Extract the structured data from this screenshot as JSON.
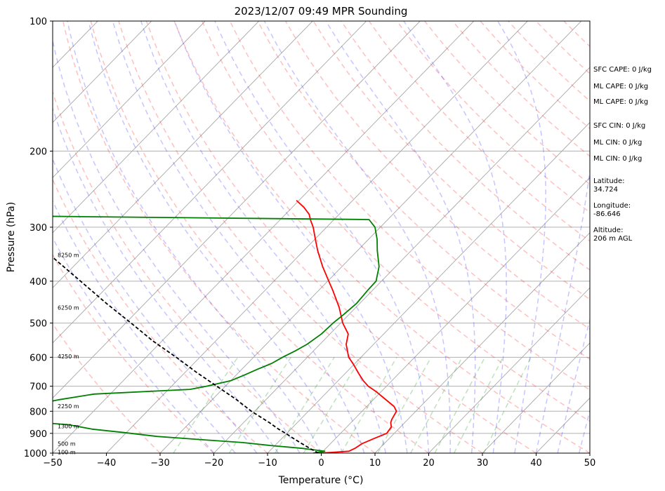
{
  "chart_data": {
    "type": "line",
    "title": "2023/12/07 09:49 MPR Sounding",
    "xlabel": "Temperature (°C)",
    "ylabel": "Pressure (hPa)",
    "xlim": [
      -50,
      50
    ],
    "ylim": [
      1000,
      100
    ],
    "yscale": "log",
    "skew": true,
    "x_ticks": [
      -50,
      -40,
      -30,
      -20,
      -10,
      0,
      10,
      20,
      30,
      40,
      50
    ],
    "y_ticks": [
      100,
      200,
      300,
      400,
      500,
      600,
      700,
      800,
      900,
      1000
    ],
    "grid": true,
    "altitude_labels": [
      {
        "label": "100 m",
        "pressure": 995
      },
      {
        "label": "500 m",
        "pressure": 950
      },
      {
        "label": "1300 m",
        "pressure": 866
      },
      {
        "label": "2250 m",
        "pressure": 778
      },
      {
        "label": "4250 m",
        "pressure": 597
      },
      {
        "label": "6250 m",
        "pressure": 460
      },
      {
        "label": "8250 m",
        "pressure": 348
      }
    ],
    "series": [
      {
        "color": "#ff0000",
        "points": [
          [
            1000,
            -0.5
          ],
          [
            997,
            1.5
          ],
          [
            990,
            4.8
          ],
          [
            975,
            5.4
          ],
          [
            950,
            5.9
          ],
          [
            925,
            7.2
          ],
          [
            900,
            8.6
          ],
          [
            870,
            8.3
          ],
          [
            850,
            7.4
          ],
          [
            835,
            7.0
          ],
          [
            800,
            6.4
          ],
          [
            780,
            5.1
          ],
          [
            750,
            2.1
          ],
          [
            720,
            -1.0
          ],
          [
            700,
            -3.4
          ],
          [
            680,
            -5.3
          ],
          [
            660,
            -7.0
          ],
          [
            620,
            -10.4
          ],
          [
            600,
            -12.3
          ],
          [
            560,
            -15.1
          ],
          [
            530,
            -16.6
          ],
          [
            500,
            -19.6
          ],
          [
            460,
            -23.1
          ],
          [
            420,
            -27.4
          ],
          [
            400,
            -29.8
          ],
          [
            370,
            -33.6
          ],
          [
            340,
            -37.4
          ],
          [
            320,
            -39.9
          ],
          [
            300,
            -42.5
          ],
          [
            290,
            -44.1
          ],
          [
            280,
            -45.6
          ],
          [
            270,
            -47.8
          ],
          [
            260,
            -50.5
          ]
        ]
      },
      {
        "color": "#008000",
        "points": [
          [
            1000,
            -1.5
          ],
          [
            990,
            0.3
          ],
          [
            985,
            -1.2
          ],
          [
            975,
            -4.4
          ],
          [
            960,
            -10.9
          ],
          [
            945,
            -16.6
          ],
          [
            930,
            -25.1
          ],
          [
            915,
            -33.6
          ],
          [
            895,
            -40.9
          ],
          [
            880,
            -47.0
          ],
          [
            860,
            -52.0
          ],
          [
            848,
            -58.5
          ],
          [
            825,
            -61.0
          ],
          [
            808,
            -61.5
          ],
          [
            790,
            -61.7
          ],
          [
            770,
            -61.7
          ],
          [
            752,
            -58.5
          ],
          [
            730,
            -53.0
          ],
          [
            712,
            -36.0
          ],
          [
            700,
            -33.5
          ],
          [
            680,
            -30.0
          ],
          [
            660,
            -28.5
          ],
          [
            640,
            -27.1
          ],
          [
            620,
            -25.5
          ],
          [
            600,
            -24.6
          ],
          [
            580,
            -23.4
          ],
          [
            560,
            -22.4
          ],
          [
            530,
            -21.6
          ],
          [
            500,
            -21.4
          ],
          [
            480,
            -21.0
          ],
          [
            450,
            -20.6
          ],
          [
            420,
            -20.9
          ],
          [
            400,
            -21.0
          ],
          [
            370,
            -23.1
          ],
          [
            340,
            -26.3
          ],
          [
            320,
            -28.4
          ],
          [
            300,
            -31.0
          ],
          [
            288,
            -33.5
          ],
          [
            283,
            -95.0
          ]
        ]
      },
      {
        "color": "#000000",
        "dashed": true,
        "points": [
          [
            1000,
            -0.5
          ],
          [
            980,
            -2.5
          ],
          [
            950,
            -5.4
          ],
          [
            920,
            -8.3
          ],
          [
            900,
            -10.2
          ],
          [
            880,
            -12.3
          ],
          [
            850,
            -15.2
          ],
          [
            800,
            -20.6
          ],
          [
            750,
            -25.7
          ],
          [
            700,
            -31.6
          ],
          [
            650,
            -37.9
          ],
          [
            600,
            -44.4
          ],
          [
            550,
            -51.7
          ],
          [
            500,
            -59.0
          ],
          [
            450,
            -67.2
          ],
          [
            400,
            -76.0
          ],
          [
            350,
            -86.0
          ],
          [
            300,
            -97.5
          ],
          [
            290,
            -100.3
          ]
        ]
      }
    ],
    "annotations": [
      "SFC CAPE: 0 J/kg",
      "ML CAPE: 0 J/kg",
      "ML CAPE: 0 J/kg",
      "SFC CIN: 0 J/kg",
      "ML CIN: 0 J/kg",
      "ML CIN: 0 J/kg",
      "Latitude:",
      "34.724",
      "Longitude:",
      "-86.646",
      "Altitude:",
      "206 m AGL"
    ]
  }
}
